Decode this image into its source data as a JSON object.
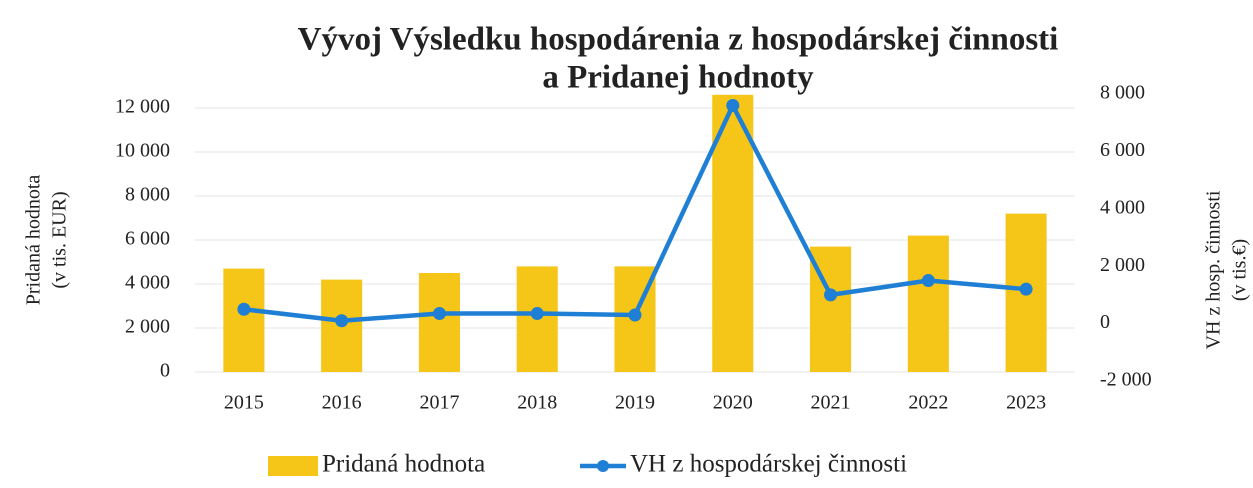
{
  "chart_data": {
    "type": "combo",
    "title": [
      "Vývoj Výsledku hospodárenia z hospodárskej činnosti",
      "a Pridanej hodnoty"
    ],
    "ylabel": [
      "Pridaná hodnota",
      "(v tis. EUR)"
    ],
    "y2label": [
      "VH z hosp. činnosti",
      "(v tis.€)"
    ],
    "categories": [
      "2015",
      "2016",
      "2017",
      "2018",
      "2019",
      "2020",
      "2021",
      "2022",
      "2023"
    ],
    "series": [
      {
        "name": "Pridaná hodnota",
        "type": "bar",
        "color": "#f5c518",
        "values": [
          4700,
          4200,
          4500,
          4800,
          4800,
          12600,
          5700,
          6200,
          7200
        ]
      },
      {
        "name": "VH z hospodárskej činnosti",
        "type": "line",
        "axis": "y2",
        "color": "#1f7fd4",
        "values": [
          500,
          100,
          350,
          350,
          300,
          7600,
          1000,
          1500,
          1200
        ]
      }
    ],
    "ylim": [
      0,
      12000
    ],
    "yticks": [
      0,
      {
        "value": 2000,
        "label": "2 000"
      },
      {
        "value": 4000,
        "label": "4 000"
      },
      {
        "value": 6000,
        "label": "6 000"
      },
      {
        "value": 8000,
        "label": "8 000"
      },
      {
        "value": 10000,
        "label": "10 000"
      },
      {
        "value": 12000,
        "label": "12 000"
      }
    ],
    "y2lim": [
      -2000,
      8000
    ],
    "y2ticks": [
      {
        "value": -2000,
        "label": "-2 000"
      },
      0,
      {
        "value": 2000,
        "label": "2 000"
      },
      {
        "value": 4000,
        "label": "4 000"
      },
      {
        "value": 6000,
        "label": "6 000"
      },
      {
        "value": 8000,
        "label": "8 000"
      }
    ],
    "grid": true,
    "legend": "bottom"
  }
}
